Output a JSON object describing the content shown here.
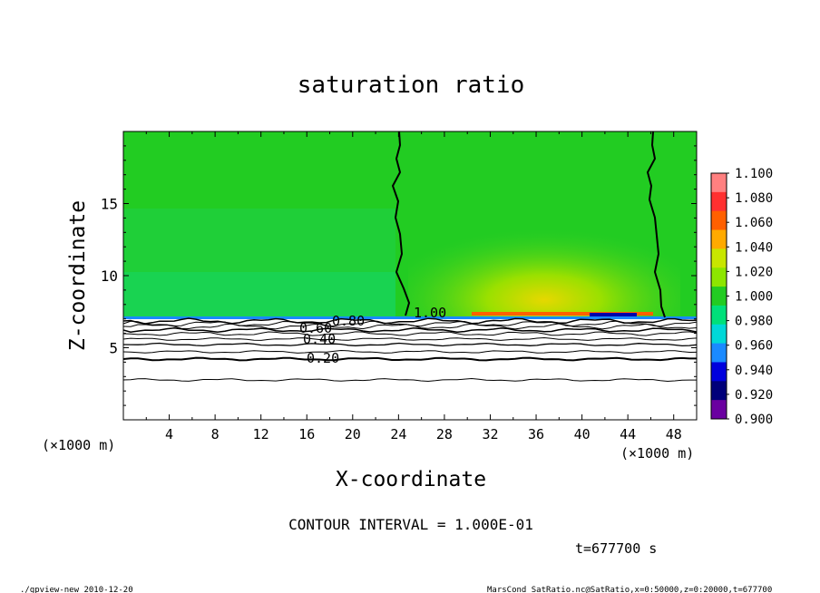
{
  "chart_data": {
    "type": "heatmap",
    "title": "saturation ratio",
    "xlabel": "X-coordinate",
    "ylabel": "Z-coordinate",
    "x_unit_left": "(×1000 m)",
    "x_unit_right": "(×1000 m)",
    "xlim": [
      0,
      50
    ],
    "ylim": [
      0,
      20
    ],
    "x_ticks": [
      4,
      8,
      12,
      16,
      20,
      24,
      28,
      32,
      36,
      40,
      44,
      48
    ],
    "y_ticks": [
      5,
      10,
      15
    ],
    "colorbar": {
      "levels": [
        "1.100",
        "1.080",
        "1.060",
        "1.040",
        "1.020",
        "1.000",
        "0.980",
        "0.960",
        "0.940",
        "0.920",
        "0.900"
      ],
      "colors": [
        "#ff8080",
        "#ff3030",
        "#ff6000",
        "#ffaa00",
        "#c8e600",
        "#8de600",
        "#22cc22",
        "#00e07a",
        "#00d8d8",
        "#1a8aff",
        "#0000dd",
        "#00007a",
        "#6a00a0"
      ]
    },
    "contour_labels": [
      "0.20",
      "0.40",
      "0.60",
      "0.80",
      "1.00"
    ],
    "annotations": {
      "contour_interval": "CONTOUR INTERVAL = 1.000E-01",
      "time": "t=677700 s",
      "footer_left": "./gpview-new   2010-12-20",
      "footer_right": "MarsCond_SatRatio.nc@SatRatio,x=0:50000,z=0:20000,t=677700"
    }
  }
}
